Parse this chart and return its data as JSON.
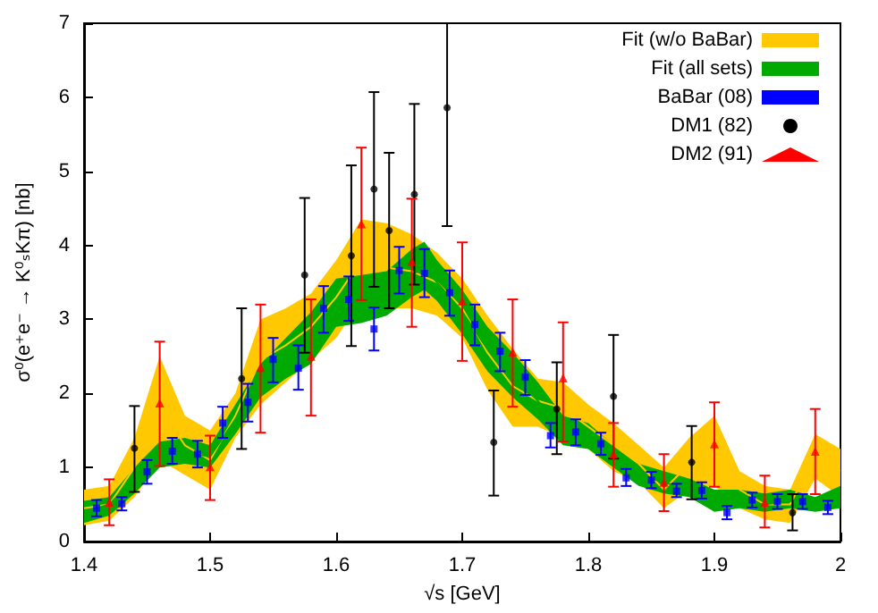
{
  "chart_data": {
    "type": "scatter",
    "xlabel": "√s [GeV]",
    "ylabel": "σ⁰(e⁺e⁻ → K⁰ₛKπ) [nb]",
    "xlim": [
      1.4,
      2
    ],
    "xticks": [
      1.4,
      1.5,
      1.6,
      1.7,
      1.8,
      1.9,
      2
    ],
    "ylim": [
      0,
      7
    ],
    "yticks": [
      0,
      1,
      2,
      3,
      4,
      5,
      6,
      7
    ],
    "grid": false,
    "legend": "top right",
    "series": [
      {
        "name": "Fit (w/o BaBar)",
        "type": "line",
        "color": "#ffc800",
        "x": [
          1.4,
          1.42,
          1.44,
          1.46,
          1.48,
          1.5,
          1.52,
          1.54,
          1.56,
          1.58,
          1.6,
          1.62,
          1.64,
          1.66,
          1.68,
          1.7,
          1.72,
          1.74,
          1.76,
          1.78,
          1.8,
          1.82,
          1.84,
          1.86,
          1.88,
          1.9,
          1.92,
          1.94,
          1.96,
          1.98,
          2.0
        ],
        "values": [
          0.45,
          0.5,
          1.0,
          1.8,
          1.3,
          1.1,
          1.7,
          2.45,
          2.65,
          2.9,
          3.3,
          3.8,
          3.7,
          3.65,
          3.5,
          3.15,
          2.55,
          2.1,
          1.9,
          1.8,
          1.55,
          1.3,
          1.05,
          0.7,
          1.05,
          1.2,
          0.7,
          0.5,
          0.5,
          1.15,
          0.95
        ],
        "lower": [
          0.22,
          0.28,
          0.6,
          1.1,
          0.9,
          0.7,
          1.4,
          1.85,
          2.15,
          2.45,
          2.75,
          3.25,
          3.15,
          3.15,
          3.05,
          2.75,
          2.05,
          1.55,
          1.55,
          1.4,
          1.25,
          0.95,
          0.8,
          0.45,
          0.7,
          0.75,
          0.45,
          0.3,
          0.25,
          0.85,
          0.6
        ],
        "upper": [
          0.7,
          0.75,
          1.4,
          2.5,
          1.7,
          1.5,
          2.0,
          3.0,
          3.15,
          3.35,
          3.8,
          4.35,
          4.3,
          4.15,
          3.9,
          3.55,
          3.05,
          2.6,
          2.2,
          2.15,
          1.85,
          1.6,
          1.3,
          1.0,
          1.4,
          1.7,
          0.95,
          0.75,
          0.7,
          1.45,
          1.25
        ]
      },
      {
        "name": "Fit (all sets)",
        "type": "line",
        "color": "#00aa00",
        "x": [
          1.4,
          1.42,
          1.44,
          1.46,
          1.48,
          1.5,
          1.52,
          1.54,
          1.56,
          1.58,
          1.6,
          1.62,
          1.64,
          1.66,
          1.67,
          1.68,
          1.7,
          1.72,
          1.74,
          1.76,
          1.78,
          1.8,
          1.82,
          1.84,
          1.86,
          1.88,
          1.9,
          1.92,
          1.94,
          1.96,
          1.98,
          2.0
        ],
        "values": [
          0.4,
          0.5,
          0.85,
          1.2,
          1.2,
          1.15,
          1.65,
          2.2,
          2.5,
          2.75,
          3.2,
          3.3,
          3.35,
          3.6,
          3.7,
          3.5,
          3.1,
          2.6,
          2.25,
          1.9,
          1.5,
          1.45,
          1.15,
          0.9,
          0.8,
          0.7,
          0.55,
          0.55,
          0.5,
          0.55,
          0.5,
          0.6
        ],
        "lower": [
          0.25,
          0.35,
          0.65,
          1.0,
          1.05,
          1.0,
          1.45,
          1.95,
          2.2,
          2.4,
          2.9,
          2.95,
          3.05,
          3.3,
          3.4,
          3.25,
          2.8,
          2.3,
          1.95,
          1.65,
          1.3,
          1.25,
          1.0,
          0.75,
          0.65,
          0.6,
          0.4,
          0.45,
          0.4,
          0.45,
          0.4,
          0.45
        ],
        "upper": [
          0.55,
          0.6,
          1.0,
          1.35,
          1.4,
          1.3,
          1.85,
          2.4,
          2.75,
          3.1,
          3.55,
          3.6,
          3.65,
          3.95,
          4.05,
          3.8,
          3.4,
          2.9,
          2.55,
          2.15,
          1.7,
          1.6,
          1.3,
          1.05,
          0.95,
          0.85,
          0.7,
          0.7,
          0.65,
          0.7,
          0.6,
          0.75
        ]
      },
      {
        "name": "BaBar (08)",
        "color": "#0000ff",
        "marker": "square",
        "x": [
          1.41,
          1.43,
          1.45,
          1.47,
          1.49,
          1.51,
          1.53,
          1.55,
          1.57,
          1.59,
          1.61,
          1.63,
          1.65,
          1.67,
          1.69,
          1.71,
          1.73,
          1.75,
          1.77,
          1.79,
          1.81,
          1.83,
          1.85,
          1.87,
          1.89,
          1.91,
          1.93,
          1.95,
          1.97,
          1.99
        ],
        "values": [
          0.45,
          0.51,
          0.94,
          1.22,
          1.18,
          1.6,
          1.88,
          2.46,
          2.34,
          3.15,
          3.27,
          2.87,
          3.66,
          3.62,
          3.36,
          2.93,
          2.57,
          2.22,
          1.43,
          1.48,
          1.32,
          0.86,
          0.83,
          0.68,
          0.69,
          0.39,
          0.56,
          0.54,
          0.54,
          0.46
        ],
        "errors": [
          [
            0.34,
            0.56
          ],
          [
            0.42,
            0.6
          ],
          [
            0.78,
            1.1
          ],
          [
            1.05,
            1.4
          ],
          [
            1.0,
            1.36
          ],
          [
            1.4,
            1.82
          ],
          [
            1.62,
            2.13
          ],
          [
            2.15,
            2.75
          ],
          [
            2.05,
            2.65
          ],
          [
            2.82,
            3.45
          ],
          [
            2.98,
            3.58
          ],
          [
            2.58,
            3.16
          ],
          [
            3.35,
            3.98
          ],
          [
            3.3,
            3.95
          ],
          [
            3.05,
            3.66
          ],
          [
            2.65,
            3.2
          ],
          [
            2.3,
            2.82
          ],
          [
            1.98,
            2.45
          ],
          [
            1.27,
            1.6
          ],
          [
            1.3,
            1.65
          ],
          [
            1.17,
            1.47
          ],
          [
            0.75,
            0.98
          ],
          [
            0.72,
            0.94
          ],
          [
            0.6,
            0.78
          ],
          [
            0.58,
            0.8
          ],
          [
            0.3,
            0.48
          ],
          [
            0.46,
            0.66
          ],
          [
            0.44,
            0.64
          ],
          [
            0.44,
            0.64
          ],
          [
            0.37,
            0.55
          ]
        ]
      },
      {
        "name": "DM1 (82)",
        "color": "#000000",
        "marker": "circle",
        "x": [
          1.44,
          1.525,
          1.575,
          1.612,
          1.63,
          1.642,
          1.662,
          1.688,
          1.725,
          1.775,
          1.82,
          1.882,
          1.962
        ],
        "values": [
          1.26,
          2.2,
          3.6,
          3.86,
          4.76,
          4.2,
          4.69,
          5.86,
          1.34,
          1.79,
          1.96,
          1.07,
          0.39
        ],
        "errors": [
          [
            0.67,
            1.83
          ],
          [
            1.25,
            3.15
          ],
          [
            2.55,
            4.64
          ],
          [
            2.64,
            5.08
          ],
          [
            3.44,
            6.07
          ],
          [
            3.15,
            5.25
          ],
          [
            3.47,
            5.91
          ],
          [
            4.26,
            7.0
          ],
          [
            0.62,
            2.04
          ],
          [
            1.18,
            2.42
          ],
          [
            1.12,
            2.79
          ],
          [
            0.57,
            1.56
          ],
          [
            0.15,
            0.64
          ]
        ]
      },
      {
        "name": "DM2 (91)",
        "color": "#ff0000",
        "marker": "triangle",
        "x": [
          1.42,
          1.46,
          1.5,
          1.54,
          1.58,
          1.62,
          1.66,
          1.7,
          1.74,
          1.78,
          1.82,
          1.86,
          1.9,
          1.94,
          1.98
        ],
        "values": [
          0.53,
          1.87,
          1.01,
          2.35,
          2.5,
          4.29,
          3.78,
          3.25,
          2.56,
          2.21,
          1.18,
          0.8,
          1.32,
          0.53,
          1.22
        ],
        "errors": [
          [
            0.22,
            0.84
          ],
          [
            1.02,
            2.7
          ],
          [
            0.56,
            1.43
          ],
          [
            1.47,
            3.2
          ],
          [
            1.7,
            3.27
          ],
          [
            3.26,
            5.32
          ],
          [
            2.9,
            4.63
          ],
          [
            2.44,
            4.04
          ],
          [
            1.82,
            3.27
          ],
          [
            1.35,
            2.96
          ],
          [
            0.74,
            1.6
          ],
          [
            0.41,
            1.18
          ],
          [
            0.74,
            1.88
          ],
          [
            0.19,
            0.89
          ],
          [
            0.64,
            1.79
          ]
        ]
      }
    ]
  }
}
